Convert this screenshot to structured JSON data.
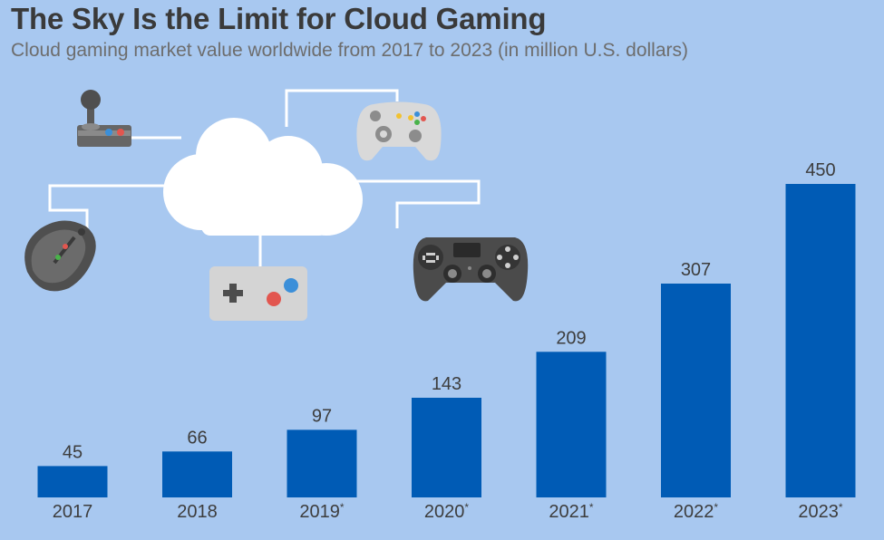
{
  "header": {
    "title": "The Sky Is the Limit for Cloud Gaming",
    "subtitle": "Cloud gaming market value worldwide from 2017 to 2023 (in million U.S. dollars)"
  },
  "illustration": {
    "icons": [
      "cloud-icon",
      "arcade-joystick-icon",
      "xbox-controller-icon",
      "gaming-mouse-icon",
      "gamepad-icon",
      "playstation-controller-icon"
    ]
  },
  "colors": {
    "background": "#a8c8f0",
    "bar": "#005bb5",
    "text": "#3d3d3d"
  },
  "chart_data": {
    "type": "bar",
    "categories": [
      "2017",
      "2018",
      "2019",
      "2020",
      "2021",
      "2022",
      "2023"
    ],
    "footnote_marks": [
      "",
      "",
      "*",
      "*",
      "*",
      "*",
      "*"
    ],
    "values": [
      45,
      66,
      97,
      143,
      209,
      307,
      450
    ],
    "value_labels": [
      "45",
      "66",
      "97",
      "143",
      "209",
      "307",
      "450"
    ],
    "title": "The Sky Is the Limit for Cloud Gaming",
    "subtitle": "Cloud gaming market value worldwide from 2017 to 2023 (in million U.S. dollars)",
    "xlabel": "",
    "ylabel": "",
    "ylim": [
      0,
      450
    ],
    "grid": false,
    "legend": "none"
  }
}
